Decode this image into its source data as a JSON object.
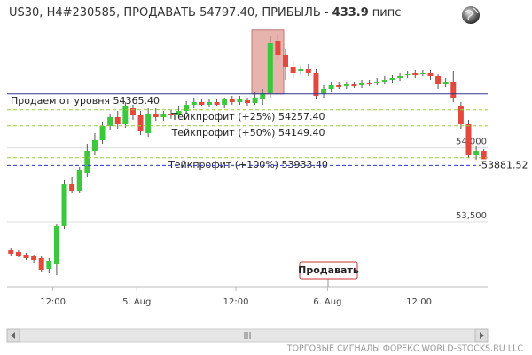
{
  "header": {
    "prefix": "US30, H4#230585, ПРОДАВАТЬ 54797.40, ПРИБЫЛЬ -",
    "profit": 433.9,
    "unit": "пипс"
  },
  "chart_data": {
    "type": "candlestick",
    "open": [
      53308,
      53296,
      53278,
      53266,
      53254,
      53182,
      53218,
      53470,
      53758,
      53710,
      53830,
      53980,
      54052,
      54148,
      54208,
      54160,
      54268,
      54220,
      54100,
      54232,
      54208,
      54232,
      54220,
      54250,
      54292,
      54310,
      54292,
      54310,
      54292,
      54328,
      54310,
      54322,
      54304,
      54328,
      54370,
      54724,
      54628,
      54550,
      54520,
      54532,
      54508,
      54364,
      54400,
      54424,
      54418,
      54430,
      54424,
      54442,
      54436,
      54448,
      54460,
      54472,
      54490,
      54508,
      54502,
      54508,
      54484,
      54430,
      54448,
      54280,
      54160,
      53950,
      53980
    ],
    "high": [
      53320,
      53308,
      53290,
      53278,
      53272,
      53254,
      53488,
      53782,
      53800,
      53872,
      54028,
      54100,
      54172,
      54232,
      54250,
      54310,
      54292,
      54250,
      54268,
      54268,
      54250,
      54256,
      54280,
      54316,
      54340,
      54328,
      54328,
      54328,
      54340,
      54352,
      54352,
      54340,
      54376,
      54400,
      54760,
      54772,
      54670,
      54580,
      54556,
      54568,
      54532,
      54424,
      54448,
      54448,
      54448,
      54448,
      54460,
      54460,
      54472,
      54484,
      54490,
      54508,
      54520,
      54526,
      54526,
      54526,
      54502,
      54472,
      54520,
      54310,
      54190,
      54010,
      53992
    ],
    "low": [
      53272,
      53260,
      53242,
      53224,
      53164,
      53152,
      53140,
      53452,
      53692,
      53692,
      53800,
      53950,
      54028,
      54124,
      54130,
      54136,
      54190,
      54088,
      54076,
      54184,
      54184,
      54196,
      54202,
      54232,
      54268,
      54280,
      54274,
      54280,
      54268,
      54292,
      54292,
      54286,
      54292,
      54292,
      54340,
      54592,
      54460,
      54472,
      54496,
      54484,
      54328,
      54340,
      54376,
      54400,
      54400,
      54406,
      54406,
      54418,
      54424,
      54430,
      54442,
      54454,
      54472,
      54472,
      54484,
      54460,
      54400,
      54412,
      54310,
      54130,
      53932,
      53920,
      53842
    ],
    "close": [
      53284,
      53272,
      53254,
      53242,
      53176,
      53236,
      53470,
      53758,
      53710,
      53848,
      53980,
      54052,
      54148,
      54208,
      54160,
      54280,
      54220,
      54112,
      54232,
      54208,
      54232,
      54220,
      54250,
      54292,
      54310,
      54292,
      54310,
      54292,
      54328,
      54310,
      54328,
      54304,
      54340,
      54370,
      54712,
      54628,
      54550,
      54508,
      54532,
      54508,
      54352,
      54400,
      54424,
      54412,
      54430,
      54418,
      54442,
      54430,
      54448,
      54460,
      54472,
      54484,
      54502,
      54496,
      54508,
      54484,
      54430,
      54448,
      54340,
      54160,
      53950,
      53980,
      53882
    ],
    "up_color": "#3cc83c",
    "down_color": "#e2483c",
    "xlim": [
      -0.5,
      62.5
    ],
    "xticks": [
      {
        "value": 5.5,
        "label": "12:00"
      },
      {
        "value": 16.5,
        "label": "5. Aug"
      },
      {
        "value": 29.5,
        "label": "12:00"
      },
      {
        "value": 41.5,
        "label": "6. Aug"
      },
      {
        "value": 53.5,
        "label": "12:00"
      }
    ],
    "ylim": [
      53062,
      55000
    ],
    "yticks": [
      {
        "value": 53500,
        "label": "53,500"
      },
      {
        "value": 54000,
        "label": "54,000"
      }
    ],
    "grid": true,
    "entry_price": 54797.4,
    "levels": [
      {
        "label": "Продаем от уровня 54365.40",
        "value": 54365.4,
        "color": "#333399",
        "dashed": false
      },
      {
        "label": "Тейкпрофит (+25%) 54257.40",
        "value": 54257.4,
        "color": "#99cc33",
        "dashed": true
      },
      {
        "label": "Тейкпрофит (+50%) 54149.40",
        "value": 54149.4,
        "color": "#99cc33",
        "dashed": true
      },
      {
        "label": "Тейкпрофит (+100%) 53933.40",
        "value": 53933.4,
        "color": "#99cc33",
        "dashed": true
      }
    ],
    "current_price": 53881.52,
    "current_color": "#3333cc"
  },
  "signal_button": "Продавать",
  "footer": "ТОРГОВЫЕ СИГНАЛЫ ФОРЕКС WORLD-STOCKS.RU LLC"
}
